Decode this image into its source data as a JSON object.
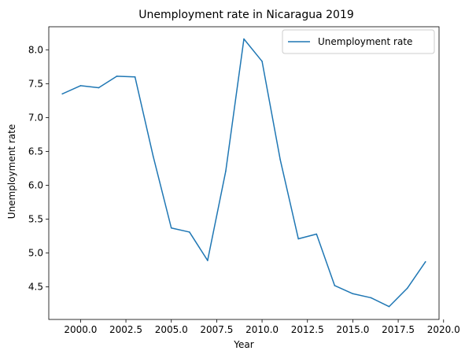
{
  "chart_data": {
    "type": "line",
    "title": "Unemployment rate in Nicaragua 2019",
    "xlabel": "Year",
    "ylabel": "Unemployment rate",
    "xlim": [
      1998.25,
      2019.75
    ],
    "ylim": [
      4.02,
      8.34
    ],
    "xticks": [
      2000.0,
      2002.5,
      2005.0,
      2007.5,
      2010.0,
      2012.5,
      2015.0,
      2017.5,
      2020.0
    ],
    "xtick_labels": [
      "2000.0",
      "2002.5",
      "2005.0",
      "2007.5",
      "2010.0",
      "2012.5",
      "2015.0",
      "2017.5",
      "2020.0"
    ],
    "yticks": [
      4.5,
      5.0,
      5.5,
      6.0,
      6.5,
      7.0,
      7.5,
      8.0
    ],
    "ytick_labels": [
      "4.5",
      "5.0",
      "5.5",
      "6.0",
      "6.5",
      "7.0",
      "7.5",
      "8.0"
    ],
    "grid": false,
    "legend_position": "top-right",
    "series": [
      {
        "name": "Unemployment rate",
        "color": "#1f77b4",
        "x": [
          1999,
          2000,
          2001,
          2002,
          2003,
          2004,
          2005,
          2006,
          2007,
          2008,
          2009,
          2010,
          2011,
          2012,
          2013,
          2014,
          2015,
          2016,
          2017,
          2018,
          2019
        ],
        "y": [
          7.35,
          7.47,
          7.44,
          7.61,
          7.6,
          6.43,
          5.37,
          5.31,
          4.89,
          6.21,
          8.16,
          7.83,
          6.38,
          5.21,
          5.28,
          4.52,
          4.4,
          4.34,
          4.21,
          4.48,
          4.87
        ]
      }
    ]
  }
}
